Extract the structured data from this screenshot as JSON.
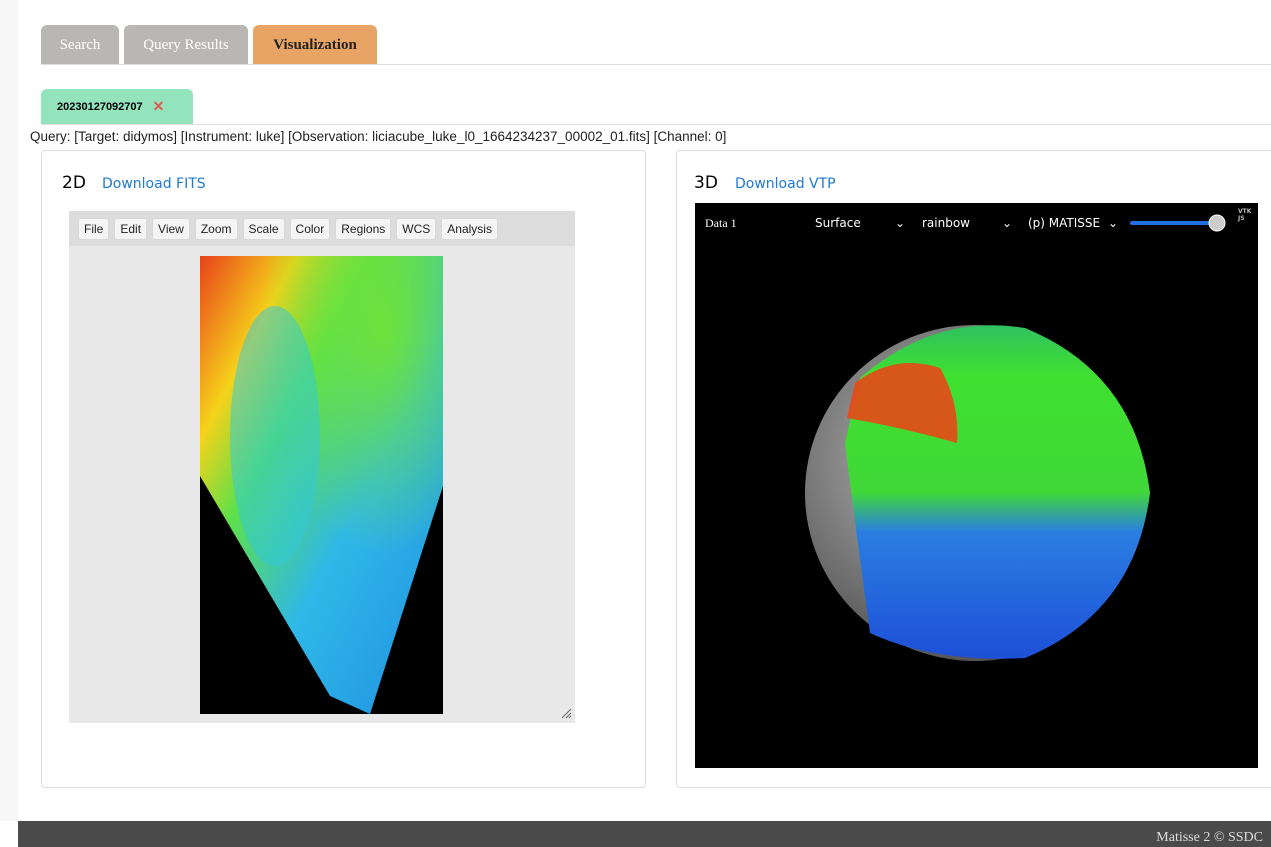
{
  "tabs": [
    "Search",
    "Query Results",
    "Visualization"
  ],
  "result_tab": "20230127092707",
  "query": "Query: [Target: didymos] [Instrument: luke] [Observation: liciacube_luke_l0_1664234237_00002_01.fits] [Channel: 0]",
  "panel_2d": {
    "title": "2D",
    "link": "Download FITS",
    "toolbar": [
      "File",
      "Edit",
      "View",
      "Zoom",
      "Scale",
      "Color",
      "Regions",
      "WCS",
      "Analysis"
    ]
  },
  "panel_3d": {
    "title": "3D",
    "link": "Download VTP",
    "controls": {
      "dataset": "Data 1",
      "representation": "Surface",
      "colormap": "rainbow",
      "field": "(p) MATISSE"
    },
    "logo": "VTK JS"
  },
  "footer": "Matisse 2 © SSDC"
}
